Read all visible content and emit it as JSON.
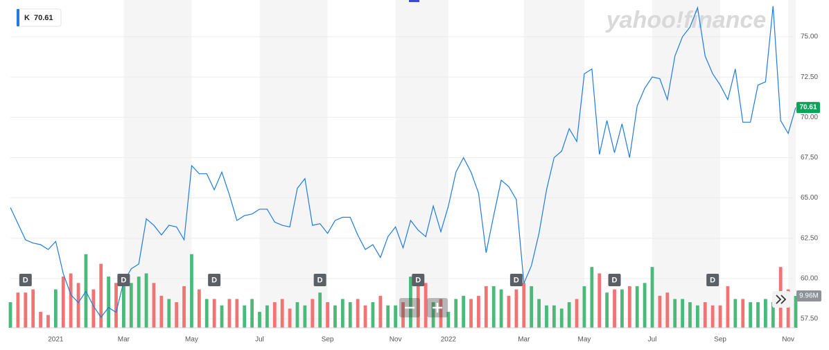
{
  "chart_data": {
    "type": "line",
    "symbol": "K",
    "watermark": "yahoo!finance",
    "last_price": 70.61,
    "last_volume": {
      "value": 9.96,
      "label": "9.96M"
    },
    "color": "#1e7be0",
    "up_color": "#4cb87a",
    "down_color": "#f07474",
    "grid": true,
    "categories": [
      null,
      null,
      null,
      null,
      null,
      null,
      "2021",
      null,
      null,
      null,
      null,
      null,
      null,
      null,
      null,
      "Mar",
      null,
      null,
      null,
      null,
      null,
      null,
      null,
      null,
      "May",
      null,
      null,
      null,
      null,
      null,
      null,
      null,
      null,
      "Jul",
      null,
      null,
      null,
      null,
      null,
      null,
      null,
      null,
      "Sep",
      null,
      null,
      null,
      null,
      null,
      null,
      null,
      null,
      "Nov",
      null,
      null,
      null,
      null,
      null,
      null,
      "2022",
      null,
      null,
      null,
      null,
      null,
      null,
      null,
      null,
      null,
      "Mar",
      null,
      null,
      null,
      null,
      null,
      null,
      null,
      "May",
      null,
      null,
      null,
      null,
      null,
      null,
      null,
      null,
      "Jul",
      null,
      null,
      null,
      null,
      null,
      null,
      null,
      null,
      "Sep",
      null,
      null,
      null,
      null,
      null,
      null,
      null,
      null,
      "Nov",
      null
    ],
    "dividends": [
      null,
      null,
      "D",
      null,
      null,
      null,
      null,
      null,
      null,
      null,
      null,
      null,
      null,
      null,
      null,
      "D",
      null,
      null,
      null,
      null,
      null,
      null,
      null,
      null,
      null,
      null,
      null,
      "D",
      null,
      null,
      null,
      null,
      null,
      null,
      null,
      null,
      null,
      null,
      null,
      null,
      null,
      "D",
      null,
      null,
      null,
      null,
      null,
      null,
      null,
      null,
      null,
      null,
      null,
      null,
      "D",
      null,
      null,
      null,
      null,
      null,
      null,
      null,
      null,
      null,
      null,
      null,
      null,
      "D",
      null,
      null,
      null,
      null,
      null,
      null,
      null,
      null,
      null,
      null,
      null,
      null,
      "D",
      null,
      null,
      null,
      null,
      null,
      null,
      null,
      null,
      null,
      null,
      null,
      null,
      "D",
      null,
      null,
      null,
      null,
      null,
      null,
      null,
      null,
      null,
      null,
      null
    ],
    "series": [
      {
        "name": "K",
        "values": [
          64.4,
          63.4,
          62.4,
          62.2,
          62.1,
          61.8,
          62.3,
          60.3,
          59.0,
          58.5,
          59.2,
          58.3,
          57.6,
          58.2,
          57.9,
          59.8,
          60.6,
          60.9,
          63.7,
          63.3,
          62.7,
          63.3,
          63.2,
          62.4,
          67.0,
          66.5,
          66.5,
          65.5,
          66.6,
          65.2,
          63.6,
          63.9,
          64.0,
          64.3,
          64.3,
          63.5,
          63.3,
          63.2,
          65.6,
          66.2,
          63.3,
          63.4,
          62.8,
          63.6,
          63.8,
          63.8,
          62.7,
          61.8,
          62.1,
          61.3,
          62.6,
          63.2,
          61.9,
          63.6,
          63.0,
          62.6,
          64.5,
          62.9,
          64.5,
          66.6,
          67.5,
          66.6,
          65.3,
          61.6,
          63.9,
          66.1,
          65.7,
          64.9,
          59.7,
          60.8,
          62.8,
          65.5,
          67.5,
          67.9,
          69.3,
          68.5,
          72.7,
          73.0,
          67.7,
          69.8,
          67.8,
          69.6,
          67.5,
          70.7,
          71.8,
          72.5,
          72.4,
          71.1,
          73.8,
          75.0,
          75.6,
          76.8,
          73.8,
          72.7,
          72.0,
          71.1,
          73.0,
          69.7,
          69.7,
          72.0,
          72.2,
          76.9,
          69.8,
          69.0,
          70.61
        ]
      }
    ],
    "volume": [
      8,
      11,
      11,
      12,
      5,
      4,
      12,
      16,
      17,
      14,
      23,
      12,
      20,
      16,
      14,
      16,
      14,
      16,
      17,
      14,
      10,
      9,
      8,
      13,
      23,
      12,
      9,
      9,
      7,
      9,
      9,
      7,
      9,
      5,
      7,
      8,
      9,
      6,
      8,
      7,
      9,
      11,
      8,
      7,
      9,
      8,
      9,
      7,
      8,
      10,
      7,
      7,
      8,
      16,
      13,
      14,
      8,
      9,
      5,
      9,
      10,
      9,
      10,
      13,
      13,
      12,
      10,
      12,
      14,
      13,
      9,
      7,
      7,
      6,
      8,
      9,
      13,
      19,
      17,
      11,
      12,
      12,
      13,
      13,
      14,
      19,
      10,
      11,
      9,
      9,
      8,
      7,
      8,
      7,
      7,
      13,
      9,
      9,
      8,
      8,
      9,
      8,
      19,
      12,
      9.96
    ],
    "ylim": [
      56.94,
      77.15
    ],
    "yticks": [
      {
        "value": 57.5,
        "label": "57.50"
      },
      {
        "value": 60,
        "label": "60.00"
      },
      {
        "value": 62.5,
        "label": "62.50"
      },
      {
        "value": 65,
        "label": "65.00"
      },
      {
        "value": 67.5,
        "label": "67.50"
      },
      {
        "value": 70,
        "label": "70.00"
      },
      {
        "value": 72.5,
        "label": "72.50"
      },
      {
        "value": 75,
        "label": "75.00"
      }
    ]
  }
}
